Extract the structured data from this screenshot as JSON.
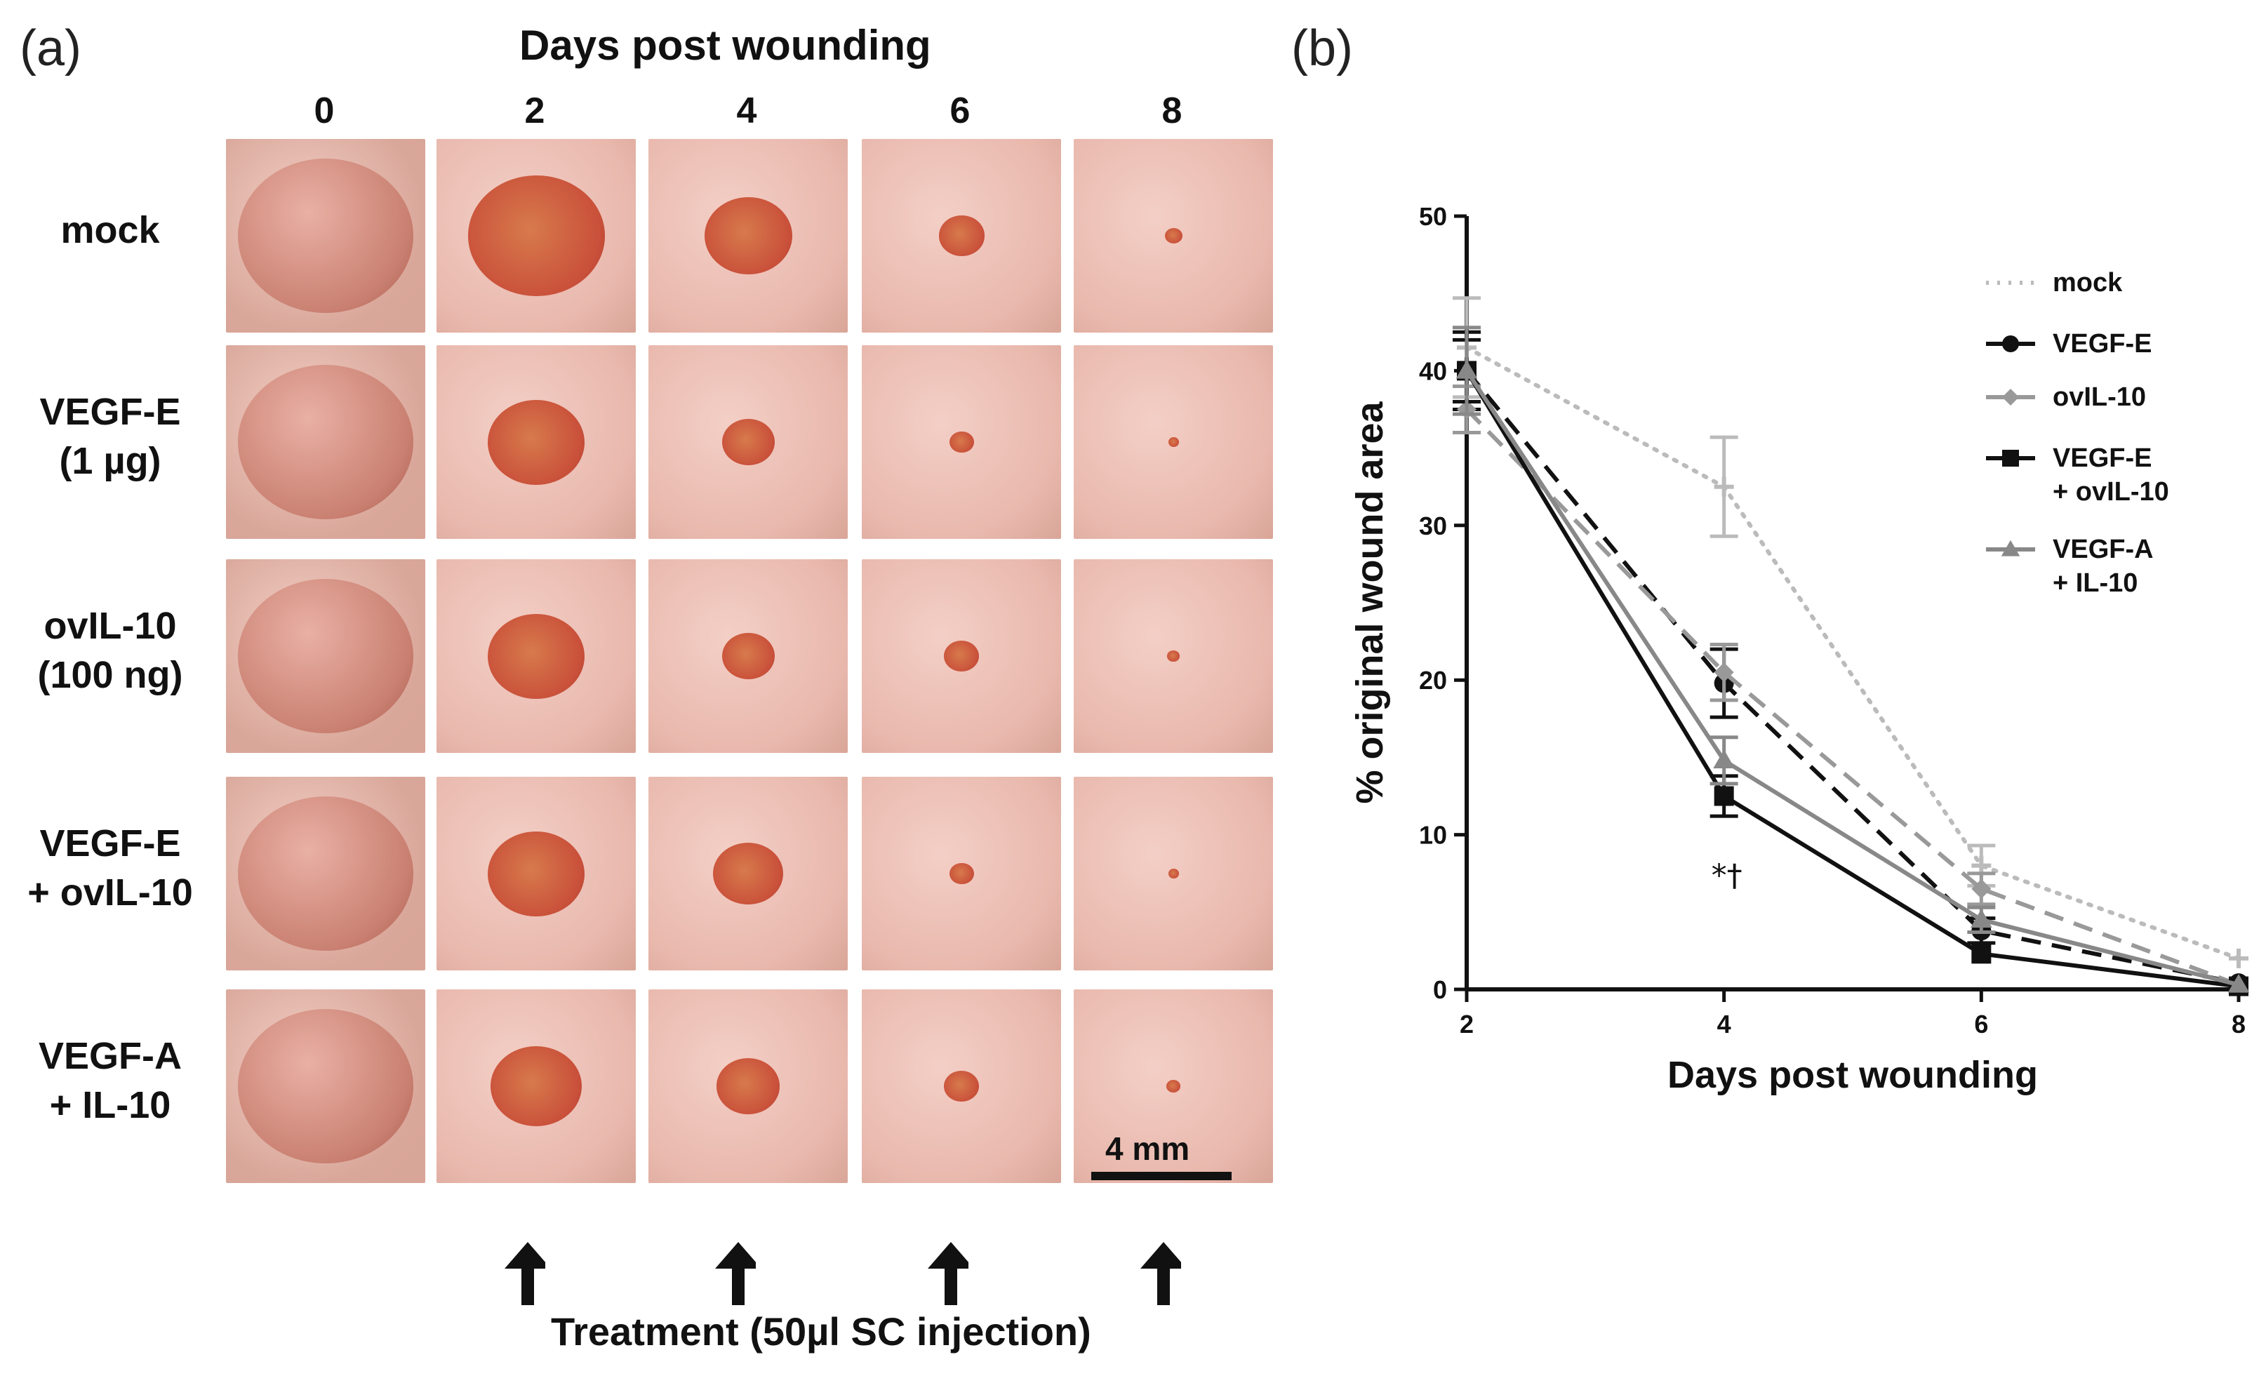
{
  "panel_a": {
    "label": "(a)",
    "header": "Days post wounding",
    "days": [
      "0",
      "2",
      "4",
      "6",
      "8"
    ],
    "rows": [
      {
        "line1": "mock",
        "line2": ""
      },
      {
        "line1": "VEGF-E",
        "line2": "(1 µg)"
      },
      {
        "line1": "ovIL-10",
        "line2": "(100 ng)"
      },
      {
        "line1": "VEGF-E",
        "line2": "+ ovIL-10"
      },
      {
        "line1": "VEGF-A",
        "line2": "+ IL-10"
      }
    ],
    "wound_sizes": [
      [
        1.0,
        0.78,
        0.5,
        0.26,
        0.1
      ],
      [
        1.0,
        0.55,
        0.3,
        0.14,
        0.06
      ],
      [
        1.0,
        0.55,
        0.3,
        0.2,
        0.07
      ],
      [
        1.0,
        0.55,
        0.4,
        0.14,
        0.06
      ],
      [
        1.0,
        0.52,
        0.36,
        0.2,
        0.08
      ]
    ],
    "scale_bar": "4 mm",
    "treatment_label": "Treatment (50µl SC injection)",
    "skin_color": "#e9b8ad",
    "wound_color": "#c9503a"
  },
  "panel_b": {
    "label": "(b)"
  },
  "chart_data": {
    "type": "line",
    "xlabel": "Days post wounding",
    "ylabel": "% original wound area",
    "x": [
      2,
      4,
      6,
      8
    ],
    "xticks": [
      "2",
      "4",
      "6",
      "8"
    ],
    "yticks": [
      "0",
      "10",
      "20",
      "30",
      "40",
      "50"
    ],
    "xlim": [
      2,
      8
    ],
    "ylim": [
      0,
      50
    ],
    "annotation": "*†",
    "series": [
      {
        "name": "mock",
        "values": [
          41.5,
          32.5,
          8,
          2
        ],
        "err": [
          3.2,
          3.2,
          1.3,
          0.4
        ],
        "color": "#bbbbbb",
        "dash": "dotted",
        "marker": "plus"
      },
      {
        "name": "VEGF-E",
        "values": [
          40,
          19.8,
          3.8,
          0.4
        ],
        "err": [
          2.5,
          2.2,
          0.8,
          0.3
        ],
        "color": "#111111",
        "dash": "dashed",
        "marker": "circle"
      },
      {
        "name": "ovIL-10",
        "values": [
          37.5,
          20.5,
          6.5,
          0.3
        ],
        "err": [
          1.5,
          1.8,
          1.0,
          0.3
        ],
        "color": "#999999",
        "dash": "dashed",
        "marker": "diamond"
      },
      {
        "name": "VEGF-E + ovIL-10",
        "label1": "VEGF-E",
        "label2": "+ ovIL-10",
        "values": [
          40,
          12.5,
          2.3,
          0.2
        ],
        "err": [
          2.0,
          1.3,
          0.5,
          0.2
        ],
        "color": "#111111",
        "dash": "solid",
        "marker": "square"
      },
      {
        "name": "VEGF-A + IL-10",
        "label1": "VEGF-A",
        "label2": "+ IL-10",
        "values": [
          40,
          14.8,
          4.5,
          0.3
        ],
        "err": [
          2.8,
          1.5,
          0.8,
          0.3
        ],
        "color": "#888888",
        "dash": "solid",
        "marker": "triangle"
      }
    ]
  }
}
